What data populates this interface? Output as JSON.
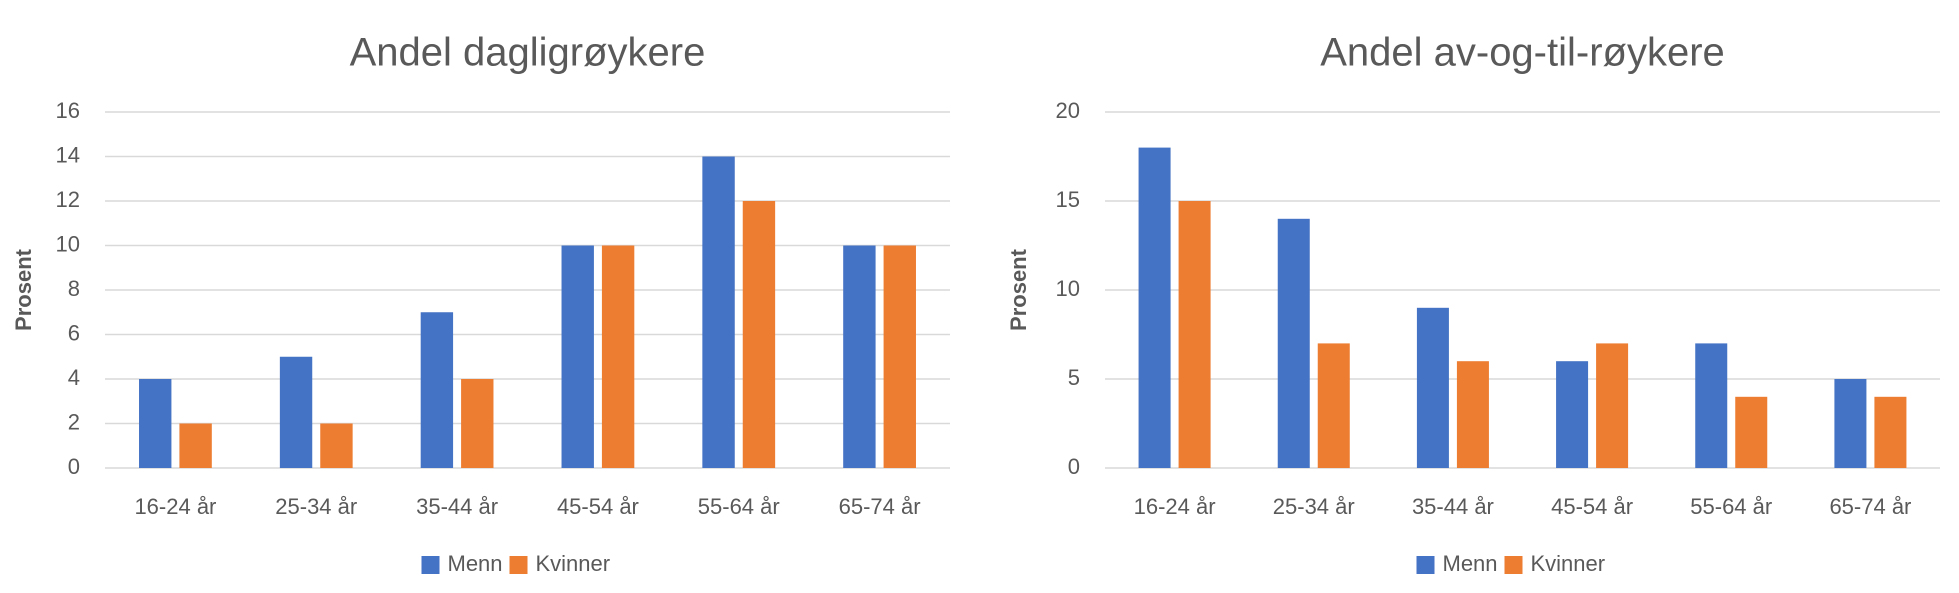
{
  "chart_data": [
    {
      "type": "bar",
      "title": "Andel dagligrøykere",
      "y_label": "Prosent",
      "categories": [
        "16-24 år",
        "25-34 år",
        "35-44 år",
        "45-54 år",
        "55-64 år",
        "65-74 år"
      ],
      "series": [
        {
          "name": "Menn",
          "color": "#4472c4",
          "values": [
            4,
            5,
            7,
            10,
            14,
            10
          ]
        },
        {
          "name": "Kvinner",
          "color": "#ed7d31",
          "values": [
            2,
            2,
            4,
            10,
            12,
            10
          ]
        }
      ],
      "ylim": [
        0,
        16
      ],
      "yticks": [
        0,
        2,
        4,
        6,
        8,
        10,
        12,
        14,
        16
      ],
      "grid": true,
      "legend": "bottom"
    },
    {
      "type": "bar",
      "title": "Andel av-og-til-røykere",
      "y_label": "Prosent",
      "categories": [
        "16-24 år",
        "25-34 år",
        "35-44 år",
        "45-54 år",
        "55-64 år",
        "65-74 år"
      ],
      "series": [
        {
          "name": "Menn",
          "color": "#4472c4",
          "values": [
            18,
            14,
            9,
            6,
            7,
            5
          ]
        },
        {
          "name": "Kvinner",
          "color": "#ed7d31",
          "values": [
            15,
            7,
            6,
            7,
            4,
            4
          ]
        }
      ],
      "ylim": [
        0,
        20
      ],
      "yticks": [
        0,
        5,
        10,
        15,
        20
      ],
      "grid": true,
      "legend": "bottom"
    }
  ]
}
